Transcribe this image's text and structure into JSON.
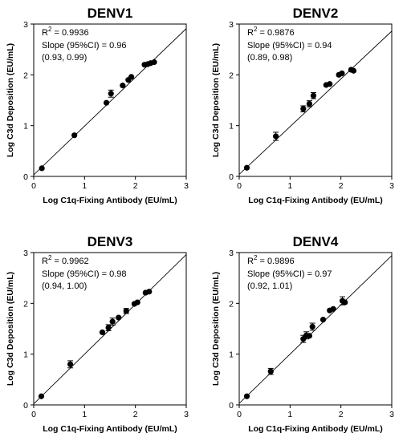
{
  "chart_data": [
    {
      "type": "scatter",
      "title": "DENV1",
      "xlabel": "Log C1q-Fixing Antibody (EU/mL)",
      "ylabel": "Log C3d Deposition (EU/mL)",
      "xlim": [
        0,
        3
      ],
      "ylim": [
        0,
        3
      ],
      "xticks": [
        "0",
        "1",
        "2",
        "3"
      ],
      "yticks": [
        "0",
        "1",
        "2",
        "3"
      ],
      "r2": "0.9936",
      "slope_text": "Slope (95%CI) = 0.96",
      "ci_text": "(0.93, 0.99)",
      "fit": {
        "slope": 0.96,
        "intercept": 0.03
      },
      "points": [
        {
          "x": 0.16,
          "y": 0.16
        },
        {
          "x": 0.8,
          "y": 0.81
        },
        {
          "x": 1.43,
          "y": 1.45
        },
        {
          "x": 1.52,
          "y": 1.63,
          "err": 0.07
        },
        {
          "x": 1.75,
          "y": 1.79
        },
        {
          "x": 1.86,
          "y": 1.9
        },
        {
          "x": 1.92,
          "y": 1.96
        },
        {
          "x": 2.18,
          "y": 2.2
        },
        {
          "x": 2.24,
          "y": 2.21
        },
        {
          "x": 2.3,
          "y": 2.23
        },
        {
          "x": 2.37,
          "y": 2.25
        }
      ]
    },
    {
      "type": "scatter",
      "title": "DENV2",
      "xlabel": "Log C1q-Fixing Antibody (EU/mL)",
      "ylabel": "Log C3d Deposition (EU/mL)",
      "xlim": [
        0,
        3
      ],
      "ylim": [
        0,
        3
      ],
      "xticks": [
        "0",
        "1",
        "2",
        "3"
      ],
      "yticks": [
        "0",
        "1",
        "2",
        "3"
      ],
      "r2": "0.9876",
      "slope_text": "Slope (95%CI) = 0.94",
      "ci_text": "(0.89, 0.98)",
      "fit": {
        "slope": 0.94,
        "intercept": 0.04
      },
      "points": [
        {
          "x": 0.15,
          "y": 0.17
        },
        {
          "x": 0.72,
          "y": 0.79,
          "err": 0.08
        },
        {
          "x": 1.26,
          "y": 1.33,
          "err": 0.06
        },
        {
          "x": 1.38,
          "y": 1.43,
          "err": 0.06
        },
        {
          "x": 1.46,
          "y": 1.59,
          "err": 0.06
        },
        {
          "x": 1.71,
          "y": 1.8
        },
        {
          "x": 1.78,
          "y": 1.82
        },
        {
          "x": 1.96,
          "y": 2.0
        },
        {
          "x": 2.02,
          "y": 2.03
        },
        {
          "x": 2.2,
          "y": 2.1
        },
        {
          "x": 2.25,
          "y": 2.08
        }
      ]
    },
    {
      "type": "scatter",
      "title": "DENV3",
      "xlabel": "Log C1q-Fixing Antibody (EU/mL)",
      "ylabel": "Log C3d Deposition (EU/mL)",
      "xlim": [
        0,
        3
      ],
      "ylim": [
        0,
        3
      ],
      "xticks": [
        "0",
        "1",
        "2",
        "3"
      ],
      "yticks": [
        "0",
        "1",
        "2",
        "3"
      ],
      "r2": "0.9962",
      "slope_text": "Slope (95%CI) = 0.98",
      "ci_text": "(0.94, 1.00)",
      "fit": {
        "slope": 0.98,
        "intercept": 0.02
      },
      "points": [
        {
          "x": 0.15,
          "y": 0.17
        },
        {
          "x": 0.72,
          "y": 0.8,
          "err": 0.07
        },
        {
          "x": 1.35,
          "y": 1.43
        },
        {
          "x": 1.47,
          "y": 1.52,
          "err": 0.06
        },
        {
          "x": 1.55,
          "y": 1.64,
          "err": 0.07
        },
        {
          "x": 1.67,
          "y": 1.72
        },
        {
          "x": 1.82,
          "y": 1.85,
          "err": 0.05
        },
        {
          "x": 1.98,
          "y": 1.99
        },
        {
          "x": 2.04,
          "y": 2.02
        },
        {
          "x": 2.2,
          "y": 2.21
        },
        {
          "x": 2.27,
          "y": 2.23
        }
      ]
    },
    {
      "type": "scatter",
      "title": "DENV4",
      "xlabel": "Log C1q-Fixing Antibody (EU/mL)",
      "ylabel": "Log C3d Deposition (EU/mL)",
      "xlim": [
        0,
        3
      ],
      "ylim": [
        0,
        3
      ],
      "xticks": [
        "0",
        "1",
        "2",
        "3"
      ],
      "yticks": [
        "0",
        "1",
        "2",
        "3"
      ],
      "r2": "0.9896",
      "slope_text": "Slope (95%CI) = 0.97",
      "ci_text": "(0.92, 1.01)",
      "fit": {
        "slope": 0.97,
        "intercept": 0.03
      },
      "points": [
        {
          "x": 0.15,
          "y": 0.17
        },
        {
          "x": 0.62,
          "y": 0.66,
          "err": 0.06
        },
        {
          "x": 1.26,
          "y": 1.3,
          "err": 0.07
        },
        {
          "x": 1.32,
          "y": 1.37,
          "err": 0.07
        },
        {
          "x": 1.38,
          "y": 1.36
        },
        {
          "x": 1.44,
          "y": 1.54,
          "err": 0.07
        },
        {
          "x": 1.65,
          "y": 1.68
        },
        {
          "x": 1.78,
          "y": 1.86
        },
        {
          "x": 1.85,
          "y": 1.89
        },
        {
          "x": 2.03,
          "y": 2.05,
          "err": 0.08
        },
        {
          "x": 2.08,
          "y": 2.02
        }
      ]
    }
  ]
}
